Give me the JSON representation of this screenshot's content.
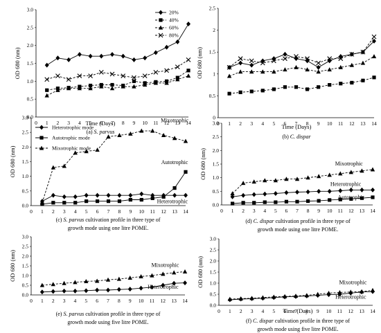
{
  "chart_data": [
    {
      "id": "a",
      "type": "line",
      "caption_label": "(a)",
      "caption_italic": "S. parvus",
      "caption_rest": "",
      "caption_line2": "",
      "xlabel": "Time (Days)",
      "ylabel": "OD 680 (nm)",
      "xlim": [
        0,
        14
      ],
      "ylim": [
        0,
        3.0
      ],
      "yticks": [
        "0.0",
        "0.5",
        "1.0",
        "1.5",
        "2.0",
        "2.5",
        "3.0"
      ],
      "xticks": [
        "0",
        "1",
        "2",
        "3",
        "4",
        "5",
        "6",
        "7",
        "8",
        "9",
        "10",
        "11",
        "12",
        "13",
        "14"
      ],
      "legend": "top-right",
      "series": [
        {
          "name": "20%",
          "marker": "diamond",
          "dash": "solid",
          "x": [
            1,
            2,
            3,
            4,
            5,
            6,
            7,
            8,
            9,
            10,
            11,
            12,
            13,
            14
          ],
          "y": [
            1.45,
            1.65,
            1.6,
            1.75,
            1.7,
            1.7,
            1.75,
            1.7,
            1.6,
            1.65,
            1.8,
            1.95,
            2.1,
            2.6
          ]
        },
        {
          "name": "40%",
          "marker": "square",
          "dash": "dash",
          "x": [
            1,
            2,
            3,
            4,
            5,
            6,
            7,
            8,
            9,
            10,
            11,
            12,
            13,
            14
          ],
          "y": [
            0.75,
            0.8,
            0.82,
            0.85,
            0.88,
            0.9,
            0.9,
            0.88,
            1.0,
            0.95,
            0.98,
            1.0,
            1.1,
            1.3
          ]
        },
        {
          "name": "60%",
          "marker": "triangle",
          "dash": "dash",
          "x": [
            1,
            2,
            3,
            4,
            5,
            6,
            7,
            8,
            9,
            10,
            11,
            12,
            13,
            14
          ],
          "y": [
            0.6,
            0.75,
            0.8,
            0.8,
            0.8,
            0.85,
            0.8,
            0.85,
            0.85,
            0.9,
            0.95,
            0.95,
            1.05,
            1.15
          ]
        },
        {
          "name": "80%",
          "marker": "x",
          "dash": "dash",
          "x": [
            1,
            2,
            3,
            4,
            5,
            6,
            7,
            8,
            9,
            10,
            11,
            12,
            13,
            14
          ],
          "y": [
            1.05,
            1.15,
            1.05,
            1.15,
            1.15,
            1.25,
            1.2,
            1.15,
            1.1,
            1.15,
            1.25,
            1.3,
            1.4,
            1.6
          ]
        }
      ],
      "annotations": []
    },
    {
      "id": "b",
      "type": "line",
      "caption_label": "(b)",
      "caption_italic": "C. dispar",
      "caption_rest": "",
      "caption_line2": "",
      "xlabel": "Time (Days)",
      "ylabel": "OD 680 (nm)",
      "xlim": [
        0,
        14
      ],
      "ylim": [
        0,
        2.5
      ],
      "yticks": [
        "0",
        "0.5",
        "1",
        "1.5",
        "2",
        "2.5"
      ],
      "xticks": [
        "0",
        "1",
        "2",
        "3",
        "4",
        "5",
        "6",
        "7",
        "8",
        "9",
        "10",
        "11",
        "12",
        "13",
        "14"
      ],
      "legend": "none",
      "series": [
        {
          "name": "",
          "marker": "diamond",
          "dash": "solid",
          "x": [
            1,
            2,
            3,
            4,
            5,
            6,
            7,
            8,
            9,
            10,
            11,
            12,
            13,
            14
          ],
          "y": [
            1.15,
            1.25,
            1.2,
            1.3,
            1.35,
            1.45,
            1.35,
            1.3,
            1.15,
            1.3,
            1.4,
            1.45,
            1.5,
            1.75
          ]
        },
        {
          "name": "",
          "marker": "square",
          "dash": "dash",
          "x": [
            1,
            2,
            3,
            4,
            5,
            6,
            7,
            8,
            9,
            10,
            11,
            12,
            13,
            14
          ],
          "y": [
            0.55,
            0.58,
            0.6,
            0.62,
            0.65,
            0.7,
            0.7,
            0.65,
            0.7,
            0.75,
            0.78,
            0.8,
            0.85,
            0.92
          ]
        },
        {
          "name": "",
          "marker": "triangle",
          "dash": "dash",
          "x": [
            1,
            2,
            3,
            4,
            5,
            6,
            7,
            8,
            9,
            10,
            11,
            12,
            13,
            14
          ],
          "y": [
            0.95,
            1.05,
            1.05,
            1.05,
            1.05,
            1.1,
            1.15,
            1.1,
            1.05,
            1.1,
            1.15,
            1.2,
            1.25,
            1.4
          ]
        },
        {
          "name": "",
          "marker": "x",
          "dash": "dash",
          "x": [
            1,
            2,
            3,
            4,
            5,
            6,
            7,
            8,
            9,
            10,
            11,
            12,
            13,
            14
          ],
          "y": [
            1.15,
            1.35,
            1.3,
            1.25,
            1.3,
            1.35,
            1.4,
            1.35,
            1.25,
            1.35,
            1.35,
            1.45,
            1.5,
            1.85
          ]
        }
      ],
      "annotations": []
    },
    {
      "id": "c",
      "type": "line",
      "caption_label": "(c)",
      "caption_italic": "S. parvus",
      "caption_rest": " cultivation profile in three type of",
      "caption_line2": "growth mode using one litre POME.",
      "xlabel": "",
      "ylabel": "OD 680 (nm)",
      "xlim": [
        0,
        14
      ],
      "ylim": [
        0,
        3.0
      ],
      "yticks": [
        "0.0",
        "0.5",
        "1.0",
        "1.5",
        "2.0",
        "2.5",
        "3.0"
      ],
      "xticks": [
        "0",
        "1",
        "2",
        "3",
        "4",
        "5",
        "6",
        "7",
        "8",
        "9",
        "10",
        "11",
        "12",
        "13",
        "14"
      ],
      "legend": "top-left",
      "series": [
        {
          "name": "Heterotrophic mode",
          "marker": "diamond",
          "dash": "solid",
          "x": [
            1,
            2,
            3,
            4,
            5,
            6,
            7,
            8,
            9,
            10,
            11,
            12,
            13,
            14
          ],
          "y": [
            0.15,
            0.35,
            0.3,
            0.3,
            0.35,
            0.35,
            0.35,
            0.35,
            0.35,
            0.4,
            0.35,
            0.35,
            0.35,
            0.35
          ]
        },
        {
          "name": "Autotrophic mode",
          "marker": "square",
          "dash": "solid",
          "x": [
            1,
            2,
            3,
            4,
            5,
            6,
            7,
            8,
            9,
            10,
            11,
            12,
            13,
            14
          ],
          "y": [
            0.05,
            0.1,
            0.1,
            0.1,
            0.15,
            0.15,
            0.15,
            0.15,
            0.2,
            0.2,
            0.25,
            0.3,
            0.6,
            1.15
          ]
        },
        {
          "name": "Mixotrophic mode",
          "marker": "triangle",
          "dash": "dash",
          "x": [
            1,
            2,
            3,
            4,
            5,
            6,
            7,
            8,
            9,
            10,
            11,
            12,
            13,
            14
          ],
          "y": [
            0.1,
            1.3,
            1.35,
            1.8,
            1.85,
            1.9,
            2.35,
            2.4,
            2.45,
            2.55,
            2.55,
            2.4,
            2.3,
            2.2
          ]
        }
      ],
      "annotations": [
        {
          "text": "Mixotrophic",
          "x": 13.0,
          "y": 2.85
        },
        {
          "text": "Autotrophic",
          "x": 13.0,
          "y": 1.42
        },
        {
          "text": "Heterotrophic",
          "x": 12.8,
          "y": 0.08
        }
      ]
    },
    {
      "id": "d",
      "type": "line",
      "caption_label": "(d)",
      "caption_italic": "C. dispar",
      "caption_rest": " cultivation profile in three type of",
      "caption_line2": "growth mode using one litre POME.",
      "xlabel": "",
      "ylabel": "OD 680 (nm)",
      "xlim": [
        0,
        14
      ],
      "ylim": [
        0,
        3.0
      ],
      "yticks": [
        "0.0",
        "0.5",
        "1.0",
        "1.5",
        "2.0",
        "2.5",
        "3.0"
      ],
      "xticks": [
        "0",
        "1",
        "2",
        "3",
        "4",
        "5",
        "6",
        "7",
        "8",
        "9",
        "10",
        "11",
        "12",
        "13",
        "14"
      ],
      "legend": "none",
      "series": [
        {
          "name": "",
          "marker": "diamond",
          "dash": "solid",
          "x": [
            1,
            2,
            3,
            4,
            5,
            6,
            7,
            8,
            9,
            10,
            11,
            12,
            13,
            14
          ],
          "y": [
            0.3,
            0.35,
            0.38,
            0.4,
            0.42,
            0.45,
            0.47,
            0.48,
            0.5,
            0.5,
            0.52,
            0.55,
            0.55,
            0.55
          ]
        },
        {
          "name": "",
          "marker": "square",
          "dash": "solid",
          "x": [
            1,
            2,
            3,
            4,
            5,
            6,
            7,
            8,
            9,
            10,
            11,
            12,
            13,
            14
          ],
          "y": [
            0.05,
            0.08,
            0.08,
            0.1,
            0.1,
            0.12,
            0.12,
            0.14,
            0.15,
            0.18,
            0.2,
            0.22,
            0.25,
            0.28
          ]
        },
        {
          "name": "",
          "marker": "triangle",
          "dash": "dash",
          "x": [
            1,
            2,
            3,
            4,
            5,
            6,
            7,
            8,
            9,
            10,
            11,
            12,
            13,
            14
          ],
          "y": [
            0.42,
            0.8,
            0.85,
            0.9,
            0.9,
            0.95,
            0.95,
            1.0,
            1.05,
            1.1,
            1.15,
            1.2,
            1.25,
            1.3
          ]
        }
      ],
      "annotations": [
        {
          "text": "Mixotrophic",
          "x": 11.8,
          "y": 1.45
        },
        {
          "text": "Heterotrophic",
          "x": 11.5,
          "y": 0.7
        },
        {
          "text": "Autotrophic",
          "x": 12.0,
          "y": 0.22
        }
      ]
    },
    {
      "id": "e",
      "type": "line",
      "caption_label": "(e)",
      "caption_italic": "S. parvus",
      "caption_rest": " cultivation profile in three type of",
      "caption_line2": "growth mode using five litre POME.",
      "xlabel": "",
      "ylabel": "OD 680 (nm)",
      "xlim": [
        0,
        14
      ],
      "ylim": [
        0,
        3.0
      ],
      "yticks": [
        "0.0",
        "0.5",
        "1.0",
        "1.5",
        "2.0",
        "2.5",
        "3.0"
      ],
      "xticks": [
        "0",
        "1",
        "2",
        "3",
        "4",
        "5",
        "6",
        "7",
        "8",
        "9",
        "10",
        "11",
        "12",
        "13",
        "14"
      ],
      "legend": "none",
      "series": [
        {
          "name": "",
          "marker": "diamond",
          "dash": "solid",
          "x": [
            1,
            2,
            3,
            4,
            5,
            6,
            7,
            8,
            9,
            10,
            11,
            12,
            13,
            14
          ],
          "y": [
            0.15,
            0.18,
            0.2,
            0.2,
            0.22,
            0.25,
            0.25,
            0.28,
            0.3,
            0.35,
            0.4,
            0.5,
            0.6,
            0.62
          ]
        },
        {
          "name": "",
          "marker": "triangle",
          "dash": "dash",
          "x": [
            1,
            2,
            3,
            4,
            5,
            6,
            7,
            8,
            9,
            10,
            11,
            12,
            13,
            14
          ],
          "y": [
            0.5,
            0.55,
            0.6,
            0.65,
            0.7,
            0.72,
            0.78,
            0.82,
            0.88,
            0.95,
            1.0,
            1.08,
            1.15,
            1.2
          ]
        }
      ],
      "annotations": [
        {
          "text": "Mixotrophic",
          "x": 12.2,
          "y": 1.45
        },
        {
          "text": "Heterotrophic",
          "x": 12.0,
          "y": 0.32
        }
      ]
    },
    {
      "id": "f",
      "type": "line",
      "caption_label": "(f)",
      "caption_italic": "C. dispar",
      "caption_rest": " cultivation profile in three type of",
      "caption_line2": "growth mode using five litre POME.",
      "xlabel": "Time (Days)",
      "ylabel": "OD 680 (nm)",
      "xlim": [
        0,
        14
      ],
      "ylim": [
        0,
        3.0
      ],
      "yticks": [
        "0.0",
        "0.5",
        "1.0",
        "1.5",
        "2.0",
        "2.5",
        "3.0"
      ],
      "xticks": [
        "0",
        "1",
        "2",
        "3",
        "4",
        "5",
        "6",
        "7",
        "8",
        "9",
        "10",
        "11",
        "12",
        "13",
        "14"
      ],
      "legend": "none",
      "series": [
        {
          "name": "",
          "marker": "diamond",
          "dash": "solid",
          "x": [
            1,
            2,
            3,
            4,
            5,
            6,
            7,
            8,
            9,
            10,
            11,
            12,
            13,
            14
          ],
          "y": [
            0.25,
            0.28,
            0.3,
            0.32,
            0.35,
            0.38,
            0.4,
            0.42,
            0.45,
            0.48,
            0.5,
            0.55,
            0.6,
            0.62
          ]
        },
        {
          "name": "",
          "marker": "triangle",
          "dash": "dash",
          "x": [
            1,
            2,
            3,
            4,
            5,
            6,
            7,
            8,
            9,
            10,
            11,
            12,
            13,
            14
          ],
          "y": [
            0.28,
            0.3,
            0.32,
            0.35,
            0.38,
            0.4,
            0.42,
            0.45,
            0.5,
            0.55,
            0.58,
            0.6,
            0.62,
            0.68
          ]
        }
      ],
      "annotations": [
        {
          "text": "Mixotrophic",
          "x": 12.2,
          "y": 0.95
        },
        {
          "text": "Heterotrophic",
          "x": 12.0,
          "y": 0.3
        }
      ]
    }
  ]
}
